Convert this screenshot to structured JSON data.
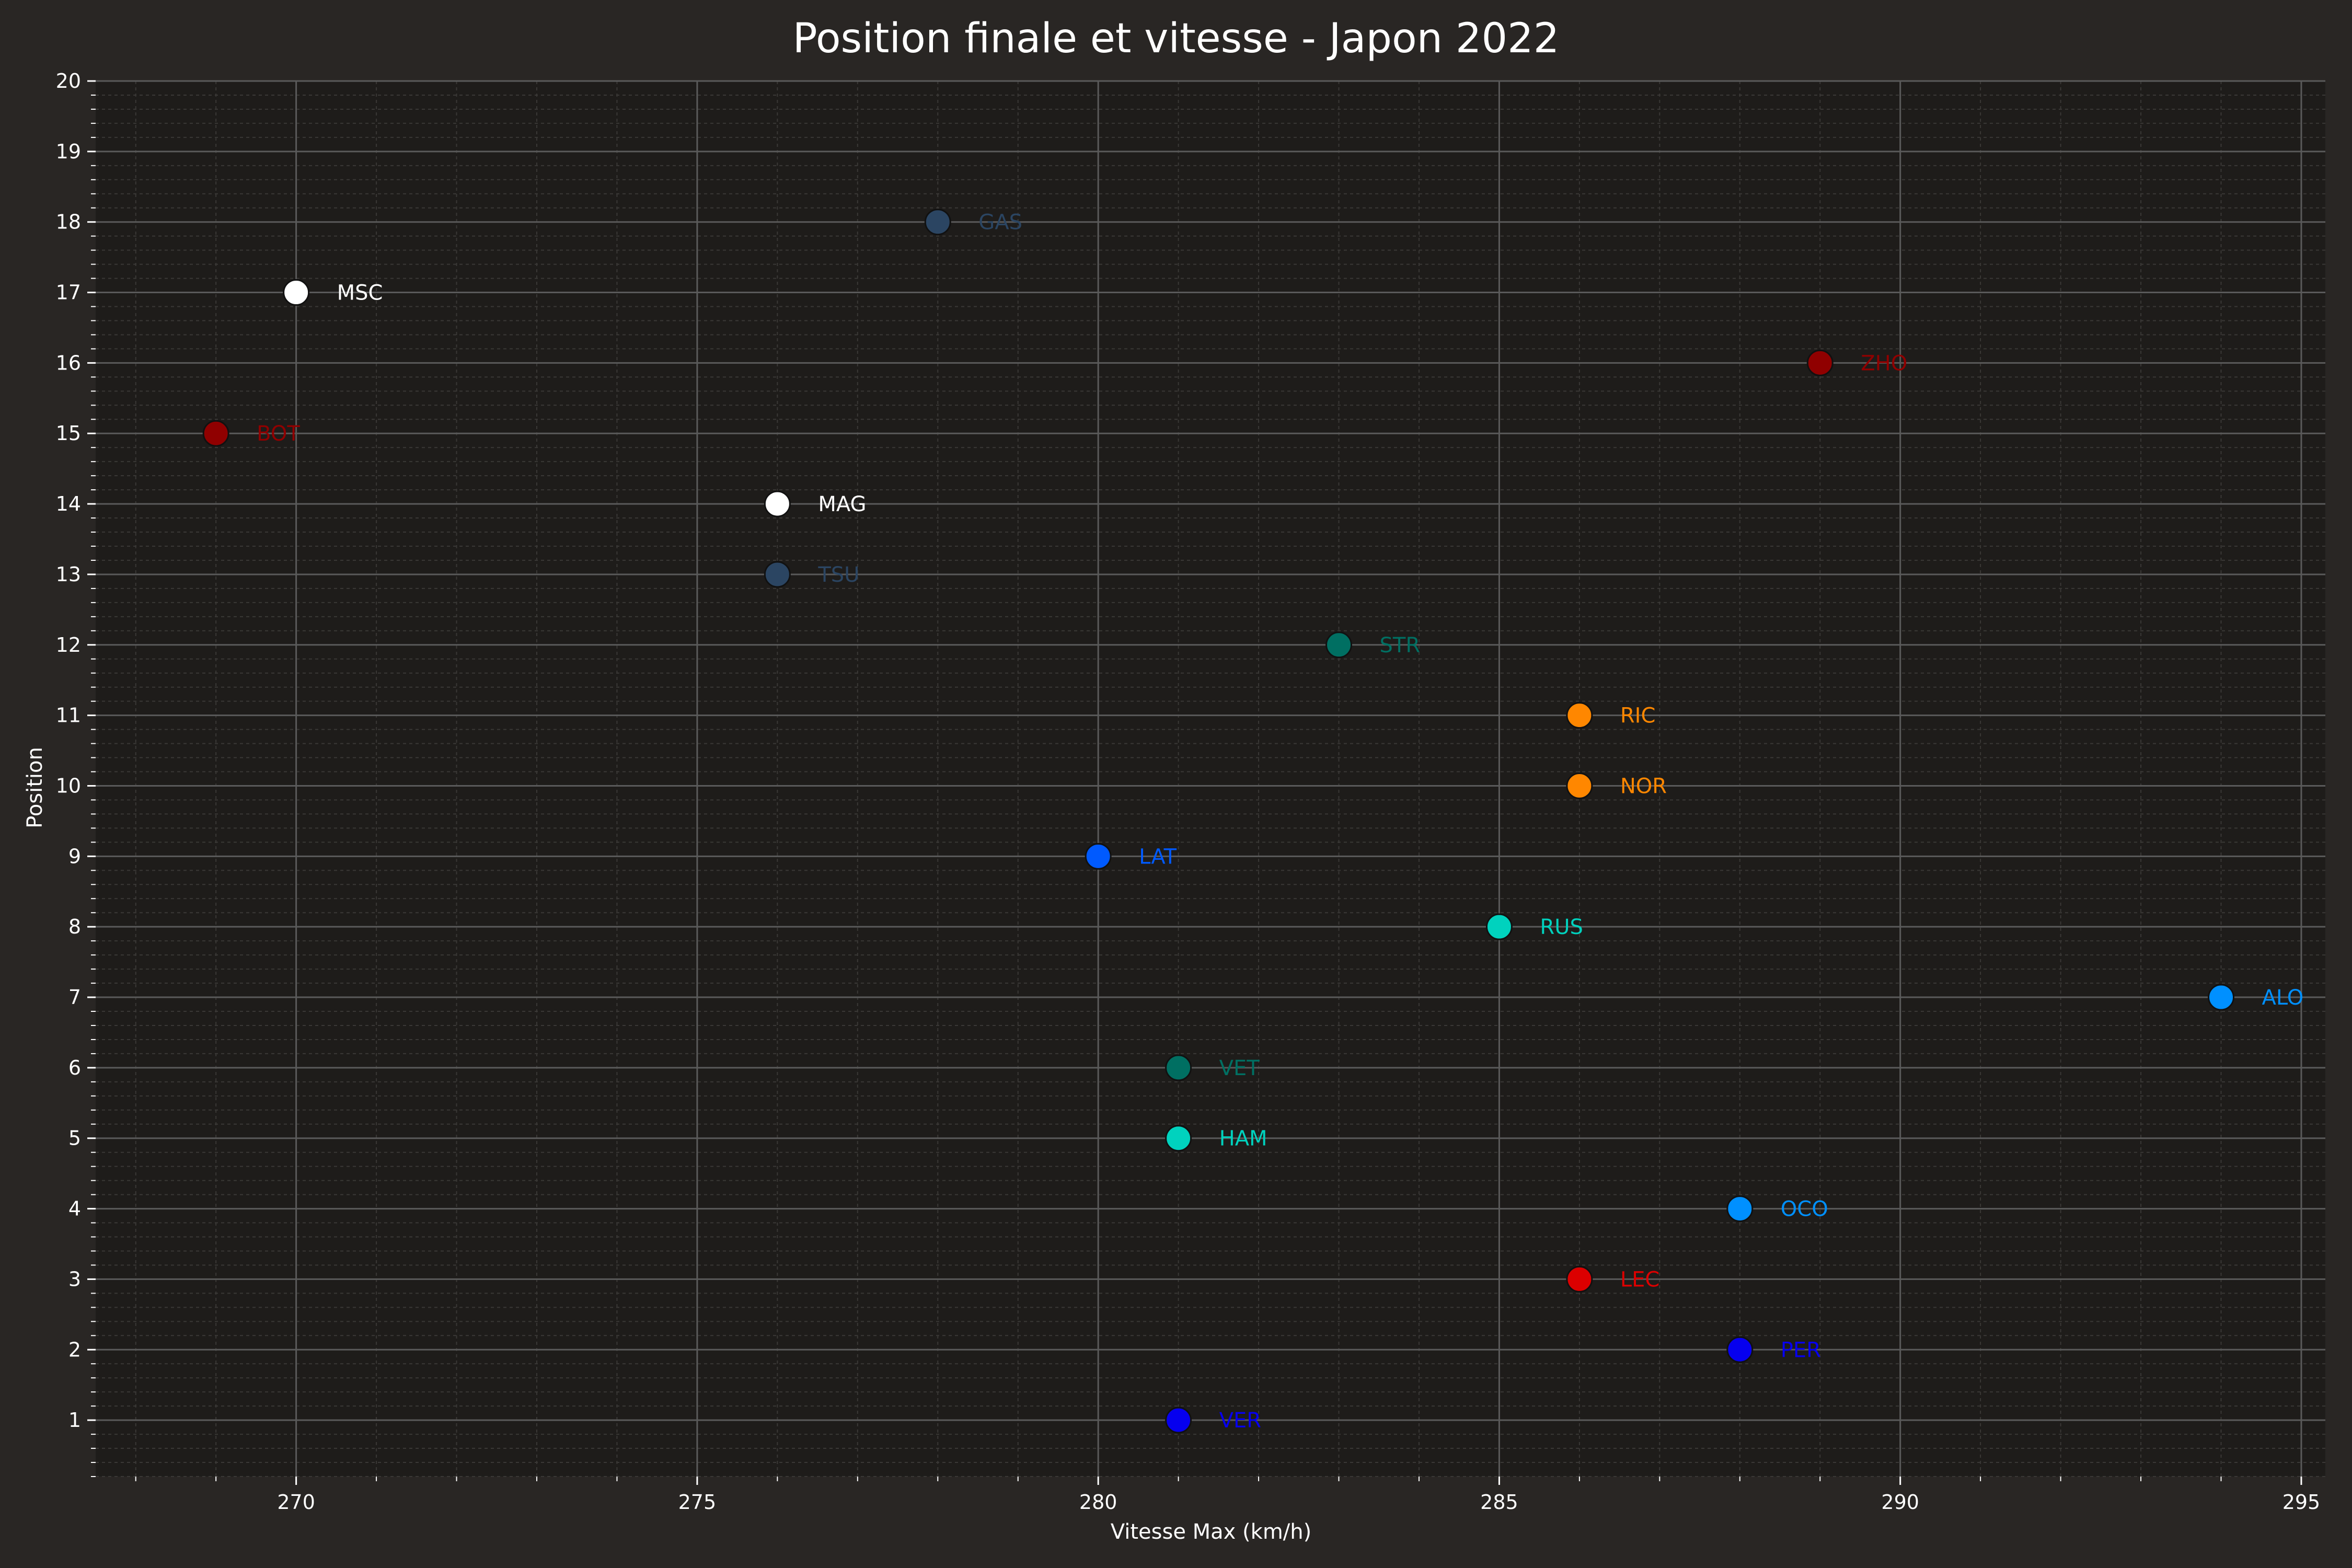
{
  "chart_data": {
    "type": "scatter",
    "title": "Position finale et vitesse - Japon 2022",
    "xlabel": "Vitesse Max (km/h)",
    "ylabel": "Position",
    "xlim": [
      267.5,
      295.3
    ],
    "ylim": [
      0.2,
      20
    ],
    "xticks": [
      270,
      275,
      280,
      285,
      290,
      295
    ],
    "yticks": [
      1,
      2,
      3,
      4,
      5,
      6,
      7,
      8,
      9,
      10,
      11,
      12,
      13,
      14,
      15,
      16,
      17,
      18,
      19,
      20
    ],
    "grid": true,
    "points": [
      {
        "label": "VER",
        "x": 281,
        "y": 1,
        "color": "#0600ef"
      },
      {
        "label": "PER",
        "x": 288,
        "y": 2,
        "color": "#0600ef"
      },
      {
        "label": "LEC",
        "x": 286,
        "y": 3,
        "color": "#dc0000"
      },
      {
        "label": "OCO",
        "x": 288,
        "y": 4,
        "color": "#0090ff"
      },
      {
        "label": "HAM",
        "x": 281,
        "y": 5,
        "color": "#00d2be"
      },
      {
        "label": "VET",
        "x": 281,
        "y": 6,
        "color": "#006f62"
      },
      {
        "label": "ALO",
        "x": 294,
        "y": 7,
        "color": "#0090ff"
      },
      {
        "label": "RUS",
        "x": 285,
        "y": 8,
        "color": "#00d2be"
      },
      {
        "label": "LAT",
        "x": 280,
        "y": 9,
        "color": "#005aff"
      },
      {
        "label": "NOR",
        "x": 286,
        "y": 10,
        "color": "#ff8700"
      },
      {
        "label": "RIC",
        "x": 286,
        "y": 11,
        "color": "#ff8700"
      },
      {
        "label": "STR",
        "x": 283,
        "y": 12,
        "color": "#006f62"
      },
      {
        "label": "TSU",
        "x": 276,
        "y": 13,
        "color": "#2b4562"
      },
      {
        "label": "MAG",
        "x": 276,
        "y": 14,
        "color": "#ffffff"
      },
      {
        "label": "BOT",
        "x": 269,
        "y": 15,
        "color": "#900000"
      },
      {
        "label": "ZHO",
        "x": 289,
        "y": 16,
        "color": "#900000"
      },
      {
        "label": "MSC",
        "x": 270,
        "y": 17,
        "color": "#ffffff"
      },
      {
        "label": "GAS",
        "x": 278,
        "y": 18,
        "color": "#2b4562"
      }
    ]
  },
  "colors": {
    "figure_background": "#292624",
    "plot_background": "#1e1c1a",
    "major_grid": "#5a5a5a",
    "minor_grid": "#3a3836",
    "text": "#ffffff"
  }
}
